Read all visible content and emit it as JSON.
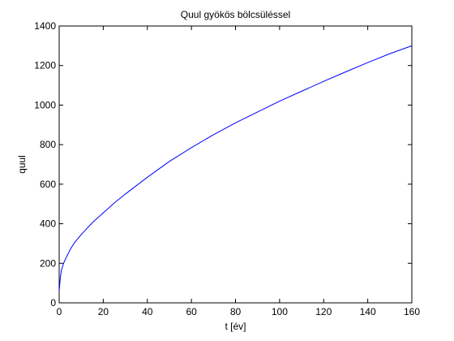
{
  "chart_data": {
    "type": "line",
    "title": "Quul gyökös bölcsüléssel",
    "xlabel": "t [év]",
    "ylabel": "quul",
    "xlim": [
      0,
      160
    ],
    "ylim": [
      0,
      1400
    ],
    "xticks": [
      0,
      20,
      40,
      60,
      80,
      100,
      120,
      140,
      160
    ],
    "yticks": [
      0,
      200,
      400,
      600,
      800,
      1000,
      1200,
      1400
    ],
    "grid": false,
    "legend": "none",
    "series": [
      {
        "color": "#0000ff",
        "x": [
          0,
          0.5,
          1,
          2,
          3,
          5,
          7,
          10,
          15,
          20,
          25,
          30,
          40,
          50,
          60,
          70,
          80,
          90,
          100,
          110,
          120,
          130,
          140,
          150,
          160
        ],
        "y": [
          60,
          125,
          165,
          200,
          225,
          270,
          305,
          345,
          405,
          455,
          505,
          550,
          635,
          715,
          785,
          850,
          910,
          965,
          1020,
          1070,
          1120,
          1168,
          1215,
          1260,
          1300
        ]
      }
    ]
  }
}
